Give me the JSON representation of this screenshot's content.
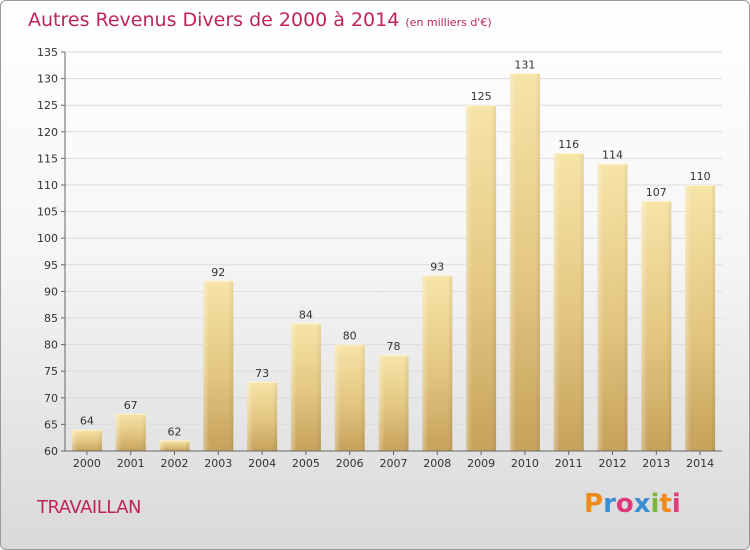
{
  "header": {
    "title": "Autres Revenus Divers de 2000 à 2014",
    "unit": "(en milliers d'€)"
  },
  "footer": {
    "place": "TRAVAILLAN",
    "logo_letters": [
      "P",
      "r",
      "o",
      "x",
      "i",
      "t",
      "i"
    ],
    "logo_colors": [
      "#f08a1c",
      "#3a8fd4",
      "#e03a7a",
      "#3a8fd4",
      "#7cb83a",
      "#f08a1c",
      "#e03a7a"
    ]
  },
  "colors": {
    "title": "#c0245c",
    "bar_light": "#f6e2a4",
    "bar_dark": "#c8a35c"
  },
  "chart_data": {
    "type": "bar",
    "title": "Autres Revenus Divers de 2000 à 2014",
    "subtitle": "(en milliers d'€)",
    "xlabel": "",
    "ylabel": "",
    "categories": [
      "2000",
      "2001",
      "2002",
      "2003",
      "2004",
      "2005",
      "2006",
      "2007",
      "2008",
      "2009",
      "2010",
      "2011",
      "2012",
      "2013",
      "2014"
    ],
    "values": [
      64,
      67,
      62,
      92,
      73,
      84,
      80,
      78,
      93,
      125,
      131,
      116,
      114,
      107,
      110
    ],
    "ylim": [
      60,
      135
    ],
    "yticks": [
      60,
      65,
      70,
      75,
      80,
      85,
      90,
      95,
      100,
      105,
      110,
      115,
      120,
      125,
      130,
      135
    ],
    "grid": true,
    "legend": "none"
  }
}
